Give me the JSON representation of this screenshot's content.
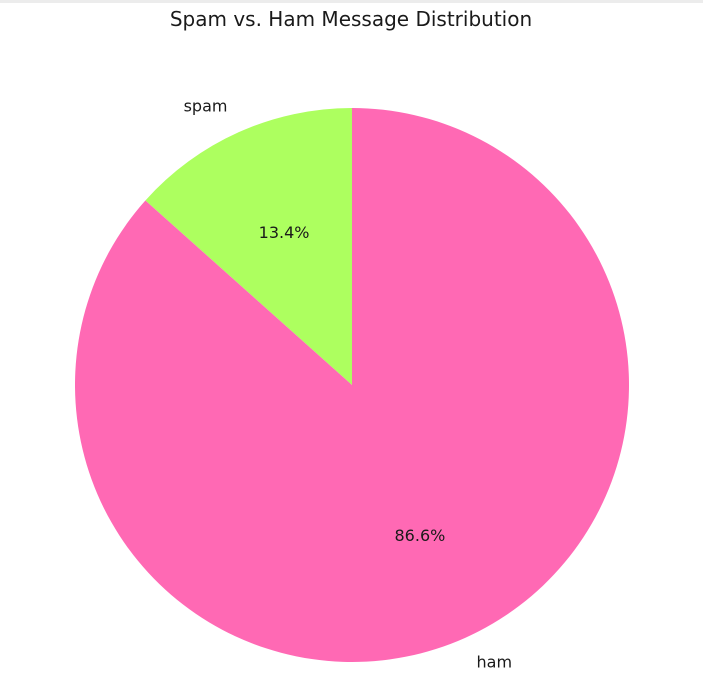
{
  "chart_data": {
    "type": "pie",
    "title": "Spam vs. Ham Message Distribution",
    "start_angle_deg": 90,
    "direction": "counterclockwise",
    "slices": [
      {
        "label": "spam",
        "value": 13.4,
        "pct_label": "13.4%",
        "color": "#adff5f"
      },
      {
        "label": "ham",
        "value": 86.6,
        "pct_label": "86.6%",
        "color": "#ff69b4"
      }
    ]
  }
}
